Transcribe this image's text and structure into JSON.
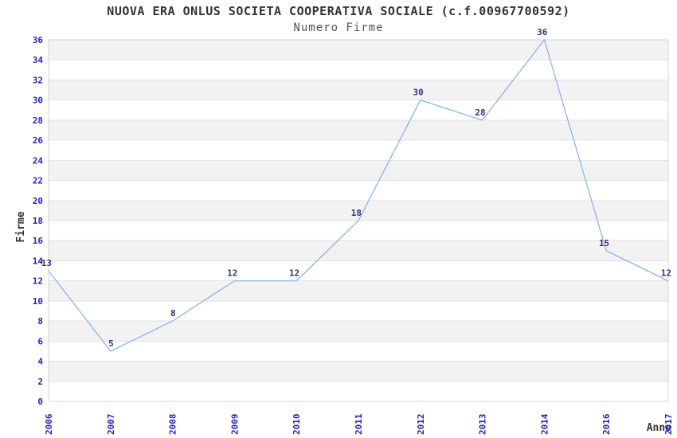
{
  "header": {
    "title": "NUOVA ERA ONLUS SOCIETA COOPERATIVA SOCIALE (c.f.00967700592)",
    "subtitle": "Numero Firme"
  },
  "chart_data": {
    "type": "line",
    "title": "NUOVA ERA ONLUS SOCIETA COOPERATIVA SOCIALE (c.f.00967700592)",
    "subtitle": "Numero Firme",
    "xlabel": "Anno",
    "ylabel": "Firme",
    "categories": [
      "2006",
      "2007",
      "2008",
      "2009",
      "2010",
      "2011",
      "2012",
      "2013",
      "2014",
      "2016",
      "2017"
    ],
    "values": [
      13,
      5,
      8,
      12,
      12,
      18,
      30,
      28,
      36,
      15,
      12
    ],
    "ylim": [
      0,
      36
    ],
    "ytick_step": 2,
    "grid": true,
    "legend": "none",
    "point_labels_visible": true,
    "colors": {
      "line": "#7fb0e8",
      "tick_label": "#2222cc",
      "point_label": "#333388",
      "band": "#f2f2f2",
      "gridline": "#e2e2e2",
      "border": "#d4d4d4",
      "title": "#333333",
      "subtitle": "#555555",
      "axis_label": "#333333"
    }
  }
}
